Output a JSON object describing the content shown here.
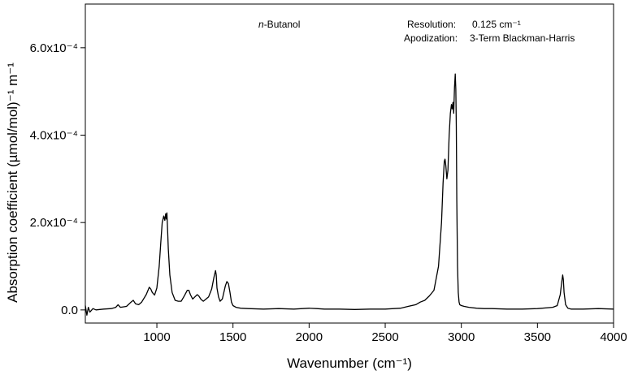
{
  "chart_data": {
    "type": "line",
    "title": "",
    "xlabel": "Wavenumber (cm⁻¹)",
    "ylabel": "Absorption coefficient (µmol/mol)⁻¹ m⁻¹",
    "xlim": [
      530,
      4000
    ],
    "ylim": [
      -3e-05,
      0.0007
    ],
    "xticks": [
      1000,
      1500,
      2000,
      2500,
      3000,
      3500,
      4000
    ],
    "yticks": [
      {
        "value": 0.0,
        "label": "0.0"
      },
      {
        "value": 0.0002,
        "label": "2.0x10⁻⁴"
      },
      {
        "value": 0.0004,
        "label": "4.0x10⁻⁴"
      },
      {
        "value": 0.0006,
        "label": "6.0x10⁻⁴"
      }
    ],
    "annotations": {
      "compound_prefix": "n",
      "compound": "-Butanol",
      "resolution_label": "Resolution:",
      "resolution_value": "0.125 cm⁻¹",
      "apodization_label": "Apodization:",
      "apodization_value": "3-Term Blackman-Harris"
    },
    "grid": false,
    "series": [
      {
        "color": "#000000",
        "x": [
          530,
          540,
          550,
          560,
          580,
          600,
          650,
          700,
          730,
          745,
          760,
          800,
          830,
          845,
          860,
          880,
          900,
          930,
          950,
          960,
          970,
          985,
          1000,
          1015,
          1025,
          1035,
          1045,
          1052,
          1058,
          1062,
          1066,
          1070,
          1075,
          1085,
          1100,
          1120,
          1140,
          1160,
          1180,
          1200,
          1210,
          1220,
          1235,
          1250,
          1265,
          1275,
          1290,
          1305,
          1320,
          1340,
          1360,
          1375,
          1385,
          1390,
          1395,
          1405,
          1415,
          1430,
          1450,
          1460,
          1470,
          1480,
          1490,
          1500,
          1520,
          1550,
          1600,
          1700,
          1800,
          1900,
          2000,
          2050,
          2100,
          2200,
          2300,
          2400,
          2500,
          2600,
          2650,
          2700,
          2730,
          2760,
          2790,
          2820,
          2850,
          2870,
          2880,
          2888,
          2893,
          2898,
          2905,
          2912,
          2920,
          2928,
          2935,
          2940,
          2945,
          2950,
          2955,
          2960,
          2964,
          2967,
          2970,
          2975,
          2980,
          2985,
          2990,
          3000,
          3020,
          3050,
          3100,
          3150,
          3200,
          3300,
          3400,
          3500,
          3600,
          3630,
          3650,
          3660,
          3666,
          3670,
          3675,
          3685,
          3700,
          3720,
          3800,
          3900,
          4000
        ],
        "y": [
          1e-05,
          -1.2e-05,
          6e-06,
          -5e-06,
          3e-06,
          0.0,
          2e-06,
          3e-06,
          6e-06,
          1.2e-05,
          6e-06,
          8e-06,
          1.8e-05,
          2.2e-05,
          1.4e-05,
          1.2e-05,
          1.8e-05,
          3.5e-05,
          5.2e-05,
          4.8e-05,
          4e-05,
          3.4e-05,
          5e-05,
          0.0001,
          0.00015,
          0.0002,
          0.000215,
          0.000205,
          0.00022,
          0.000208,
          0.000222,
          0.000185,
          0.00014,
          8e-05,
          4e-05,
          2.2e-05,
          2e-05,
          2e-05,
          3.2e-05,
          4.5e-05,
          4.5e-05,
          3.5e-05,
          2.5e-05,
          3e-05,
          3.5e-05,
          3.2e-05,
          2.4e-05,
          2e-05,
          2.4e-05,
          3e-05,
          4.8e-05,
          7.5e-05,
          9e-05,
          8e-05,
          5e-05,
          3e-05,
          2e-05,
          2.5e-05,
          5.5e-05,
          6.5e-05,
          6e-05,
          4e-05,
          1.8e-05,
          1e-05,
          6e-06,
          4e-06,
          3e-06,
          2e-06,
          3e-06,
          2e-06,
          4e-06,
          3e-06,
          2e-06,
          2e-06,
          1e-06,
          2e-06,
          2e-06,
          4e-06,
          8e-06,
          1.2e-05,
          1.8e-05,
          2.2e-05,
          3.2e-05,
          4.5e-05,
          0.0001,
          0.0002,
          0.00029,
          0.00034,
          0.000345,
          0.00033,
          0.0003,
          0.00032,
          0.0004,
          0.00045,
          0.00047,
          0.00046,
          0.000475,
          0.00045,
          0.00051,
          0.00054,
          0.000505,
          0.00042,
          0.00025,
          0.0001,
          4e-05,
          1.8e-05,
          1.2e-05,
          1e-05,
          8e-06,
          6e-06,
          4e-06,
          3e-06,
          3e-06,
          2e-06,
          2e-06,
          3e-06,
          6e-06,
          1e-05,
          3.5e-05,
          6.5e-05,
          8e-05,
          7e-05,
          4e-05,
          1.2e-05,
          4e-06,
          2e-06,
          2e-06,
          3e-06,
          2e-06
        ]
      }
    ]
  }
}
